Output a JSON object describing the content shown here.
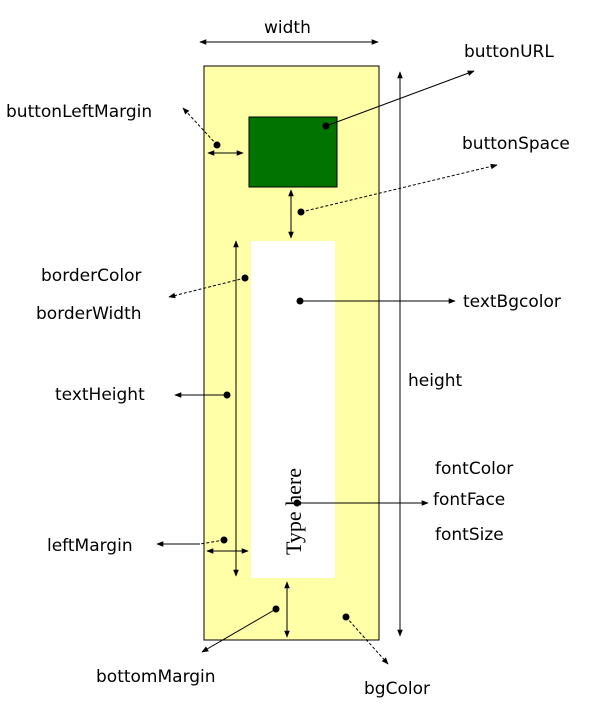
{
  "diagram": {
    "labels": {
      "width": "width",
      "height": "height",
      "buttonURL": "buttonURL",
      "buttonLeftMargin": "buttonLeftMargin",
      "buttonSpace": "buttonSpace",
      "borderColor": "borderColor",
      "borderWidth": "borderWidth",
      "textBgcolor": "textBgcolor",
      "textHeight": "textHeight",
      "fontColor": "fontColor",
      "fontFace": "fontFace",
      "fontSize": "fontSize",
      "leftMargin": "leftMargin",
      "bottomMargin": "bottomMargin",
      "bgColor": "bgColor"
    },
    "sample_text": "Type here",
    "colors": {
      "background": "#ffffa8",
      "button": "#007300",
      "text_area": "#ffffff",
      "line": "#000000"
    }
  }
}
